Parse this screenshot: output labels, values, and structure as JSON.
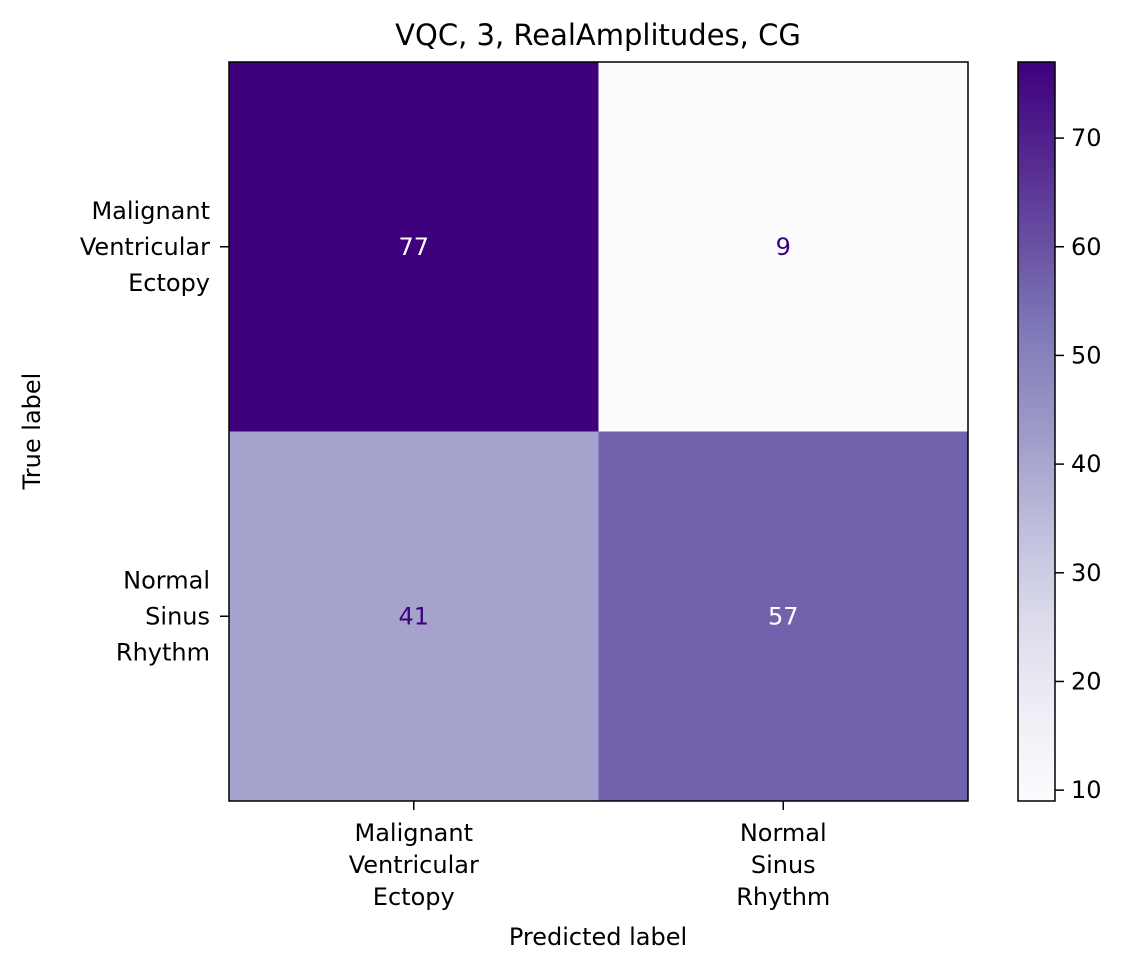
{
  "chart_data": {
    "type": "heatmap",
    "title": "VQC, 3, RealAmplitudes, CG",
    "xlabel": "Predicted label",
    "ylabel": "True label",
    "x_categories": [
      "Malignant\nVentricular\nEctopy",
      "Normal\nSinus\nRhythm"
    ],
    "y_categories": [
      "Malignant\nVentricular\nEctopy",
      "Normal\nSinus\nRhythm"
    ],
    "values": [
      [
        77,
        9
      ],
      [
        41,
        57
      ]
    ],
    "colormap": "Purples",
    "colorbar": {
      "min": 9,
      "max": 77,
      "ticks": [
        10,
        20,
        30,
        40,
        50,
        60,
        70
      ]
    },
    "grid": false,
    "text_colors": {
      "light": "#ffffff",
      "dark": "#3f007d"
    }
  }
}
